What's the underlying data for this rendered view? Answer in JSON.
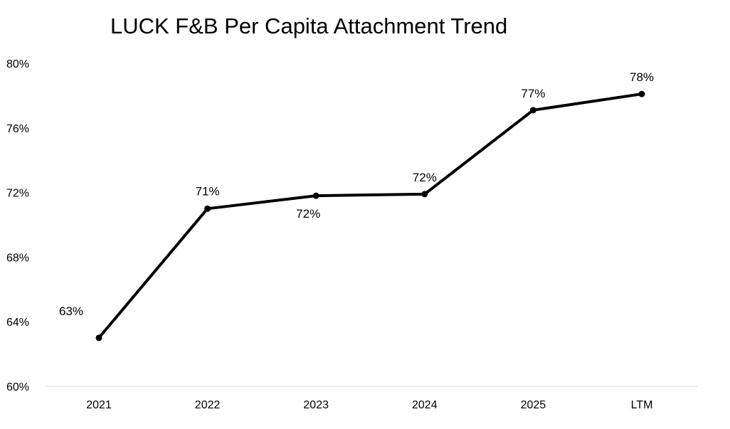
{
  "chart_data": {
    "type": "line",
    "title": "LUCK F&B Per Capita Attachment Trend",
    "xlabel": "",
    "ylabel": "",
    "categories": [
      "2021",
      "2022",
      "2023",
      "2024",
      "2025",
      "LTM"
    ],
    "series": [
      {
        "values": [
          63.0,
          71.0,
          71.8,
          71.9,
          77.1,
          78.1
        ],
        "labels": [
          "63%",
          "71%",
          "72%",
          "72%",
          "77%",
          "78%"
        ],
        "label_positions": [
          "above-left",
          "above",
          "below",
          "above",
          "above",
          "above"
        ],
        "color": "#000000"
      }
    ],
    "ylim": [
      60,
      80
    ],
    "yticks": [
      60,
      64,
      68,
      72,
      76,
      80
    ],
    "ytick_labels": [
      "60%",
      "64%",
      "68%",
      "72%",
      "76%",
      "80%"
    ],
    "grid": false,
    "legend": "none"
  }
}
